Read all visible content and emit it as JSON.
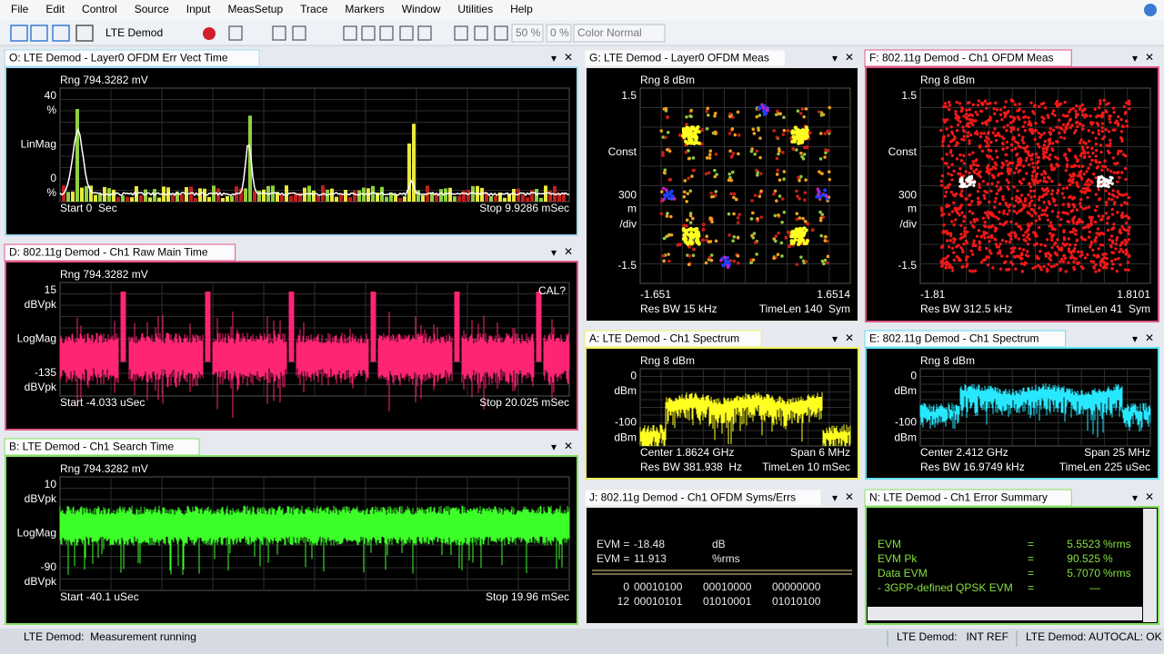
{
  "menu": [
    "File",
    "Edit",
    "Control",
    "Source",
    "Input",
    "MeasSetup",
    "Trace",
    "Markers",
    "Window",
    "Utilities",
    "Help"
  ],
  "toolbar": {
    "measurement": "LTE Demod",
    "zoom_a": "50 %",
    "zoom_b": "0 %",
    "color_scheme": "Color Normal"
  },
  "panels": [
    {
      "title": "O: LTE Demod - Layer0 OFDM Err Vect Time",
      "range": "Rng 794.3282 mV",
      "y_labels": [
        "40",
        "%",
        "LinMag",
        "0",
        "%"
      ],
      "footer": [
        [
          "Start 0  Sec",
          "Stop 9.9286 mSec"
        ]
      ]
    },
    {
      "title": "D: 802.11g Demod - Ch1 Raw Main Time",
      "range": "Rng 794.3282 mV",
      "y_labels": [
        "15",
        "dBVpk",
        "LogMag",
        "-135",
        "dBVpk"
      ],
      "note": "CAL?",
      "footer": [
        [
          "Start -4.033 uSec",
          "Stop 20.025 mSec"
        ]
      ]
    },
    {
      "title": "B: LTE Demod - Ch1 Search Time",
      "range": "Rng 794.3282 mV",
      "y_labels": [
        "10",
        "dBVpk",
        "LogMag",
        "-90",
        "dBVpk"
      ],
      "footer": [
        [
          "Start -40.1 uSec",
          "Stop 19.96 mSec"
        ]
      ]
    },
    {
      "title": "G: LTE Demod - Layer0 OFDM Meas",
      "range": "Rng 8 dBm",
      "y_labels": [
        "1.5",
        "Const",
        "300",
        "m",
        "/div",
        "-1.5"
      ],
      "x_labels": [
        "-1.651",
        "1.6514"
      ],
      "footer": [
        [
          "Res BW 15 kHz",
          "TimeLen 140  Sym"
        ]
      ]
    },
    {
      "title": "F: 802.11g Demod - Ch1 OFDM Meas",
      "range": "Rng 8 dBm",
      "y_labels": [
        "1.5",
        "Const",
        "300",
        "m",
        "/div",
        "-1.5"
      ],
      "x_labels": [
        "-1.81",
        "1.8101"
      ],
      "footer": [
        [
          "Res BW 312.5 kHz",
          "TimeLen 41  Sym"
        ]
      ]
    },
    {
      "title": "A: LTE Demod - Ch1 Spectrum",
      "range": "Rng 8 dBm",
      "y_labels": [
        "0",
        "dBm",
        "-100",
        "dBm"
      ],
      "footer": [
        [
          "Center 1.8624 GHz",
          "Span 6 MHz"
        ],
        [
          "Res BW 381.938  Hz",
          "TimeLen 10 mSec"
        ]
      ]
    },
    {
      "title": "E: 802.11g Demod - Ch1 Spectrum",
      "range": "Rng 8 dBm",
      "y_labels": [
        "0",
        "dBm",
        "-100",
        "dBm"
      ],
      "footer": [
        [
          "Center 2.412 GHz",
          "Span 25 MHz"
        ],
        [
          "Res BW 16.9749 kHz",
          "TimeLen 225 uSec"
        ]
      ]
    },
    {
      "title": "J: 802.11g Demod - Ch1 OFDM Syms/Errs",
      "summary": [
        [
          "EVM =",
          "-18.48",
          "dB"
        ],
        [
          "EVM =",
          "11.913",
          "%rms"
        ]
      ],
      "symbols": [
        [
          "0",
          "00010100",
          "00010000",
          "00000000"
        ],
        [
          "12",
          "00010101",
          "01010001",
          "01010100"
        ]
      ]
    },
    {
      "title": "N: LTE Demod - Ch1 Error Summary",
      "rows": [
        [
          "EVM",
          "=",
          "5.5523",
          "%rms"
        ],
        [
          "EVM Pk",
          "=",
          "90.525",
          "%"
        ],
        [
          "Data EVM",
          "=",
          "5.7070",
          "%rms"
        ],
        [
          "- 3GPP-defined QPSK EVM",
          "=",
          "—"
        ]
      ]
    }
  ],
  "status": [
    "LTE Demod:  Measurement running",
    "LTE Demod:   INT REF",
    "LTE Demod: AUTOCAL: OK"
  ]
}
